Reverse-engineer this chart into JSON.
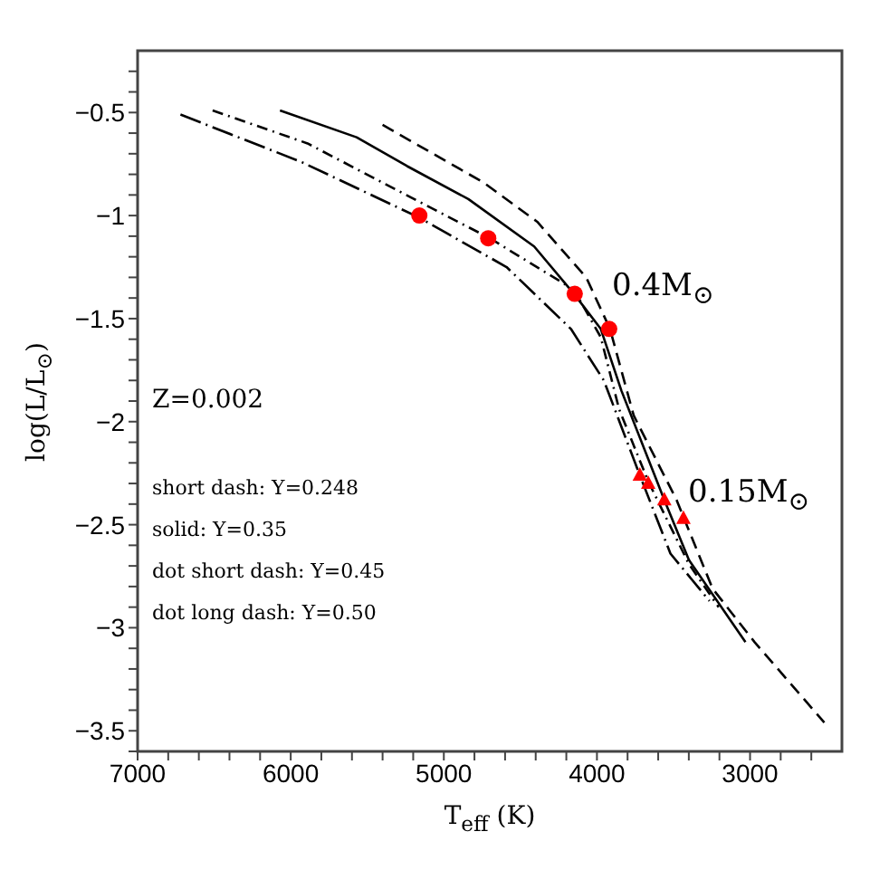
{
  "chart_data": {
    "type": "line",
    "xlabel": "T$_{eff}$ (K)",
    "ylabel": "log(L/L$_{⊙}$)",
    "xlim": [
      7000,
      2400
    ],
    "ylim": [
      -3.6,
      -0.2
    ],
    "xticks": [
      7000,
      {
        "value": 6800,
        "label": null
      },
      {
        "value": 6600,
        "label": null
      },
      {
        "value": 6400,
        "label": null
      },
      {
        "value": 6200,
        "label": null
      },
      6000,
      {
        "value": 5800,
        "label": null
      },
      {
        "value": 5600,
        "label": null
      },
      {
        "value": 5400,
        "label": null
      },
      {
        "value": 5200,
        "label": null
      },
      5000,
      {
        "value": 4800,
        "label": null
      },
      {
        "value": 4600,
        "label": null
      },
      {
        "value": 4400,
        "label": null
      },
      {
        "value": 4200,
        "label": null
      },
      4000,
      {
        "value": 3800,
        "label": null
      },
      {
        "value": 3600,
        "label": null
      },
      {
        "value": 3400,
        "label": null
      },
      {
        "value": 3200,
        "label": null
      },
      3000,
      {
        "value": 2800,
        "label": null
      },
      {
        "value": 2600,
        "label": null
      }
    ],
    "yticks": [
      {
        "value": -3.6,
        "label": null
      },
      -3.5,
      {
        "value": -3.4,
        "label": null
      },
      {
        "value": -3.3,
        "label": null
      },
      {
        "value": -3.2,
        "label": null
      },
      {
        "value": -3.1,
        "label": null
      },
      -3,
      {
        "value": -2.9,
        "label": null
      },
      {
        "value": -2.8,
        "label": null
      },
      {
        "value": -2.7,
        "label": null
      },
      {
        "value": -2.6,
        "label": null
      },
      -2.5,
      {
        "value": -2.4,
        "label": null
      },
      {
        "value": -2.3,
        "label": null
      },
      {
        "value": -2.2,
        "label": null
      },
      {
        "value": -2.1,
        "label": null
      },
      -2,
      {
        "value": -1.9,
        "label": null
      },
      {
        "value": -1.8,
        "label": null
      },
      {
        "value": -1.7,
        "label": null
      },
      {
        "value": -1.6,
        "label": null
      },
      -1.5,
      {
        "value": -1.4,
        "label": null
      },
      {
        "value": -1.3,
        "label": null
      },
      {
        "value": -1.2,
        "label": null
      },
      {
        "value": -1.1,
        "label": null
      },
      -1,
      {
        "value": -0.9,
        "label": null
      },
      {
        "value": -0.8,
        "label": null
      },
      {
        "value": -0.7,
        "label": null
      },
      {
        "value": -0.6,
        "label": null
      },
      -0.5,
      {
        "value": -0.4,
        "label": null
      },
      {
        "value": -0.3,
        "label": null
      }
    ],
    "grid": false,
    "series": [
      {
        "color": "#000000",
        "line_style": "dashed",
        "marker": "none",
        "x": [
          5400,
          4740,
          4390,
          4070,
          3915,
          3760,
          3480,
          3245,
          2970,
          2515
        ],
        "values": [
          -0.56,
          -0.84,
          -1.03,
          -1.3,
          -1.55,
          -1.97,
          -2.38,
          -2.81,
          -3.07,
          -3.46
        ]
      },
      {
        "color": "#000000",
        "line_style": "solid",
        "marker": "none",
        "x": [
          6070,
          5570,
          5240,
          4840,
          4410,
          4150,
          3975,
          3840,
          3560,
          3400,
          3030
        ],
        "values": [
          -0.49,
          -0.62,
          -0.76,
          -0.92,
          -1.15,
          -1.38,
          -1.55,
          -1.85,
          -2.38,
          -2.67,
          -3.07
        ]
      },
      {
        "color": "#000000",
        "line_style": "dashdot",
        "marker": "none",
        "x": [
          6510,
          5890,
          5220,
          4700,
          4150,
          3975,
          3855,
          3665,
          3400,
          3205
        ],
        "values": [
          -0.49,
          -0.65,
          -0.91,
          -1.11,
          -1.36,
          -1.59,
          -1.94,
          -2.29,
          -2.69,
          -2.9
        ]
      },
      {
        "color": "#000000",
        "line_style": "longdashdot",
        "marker": "none",
        "x": [
          6720,
          5930,
          5160,
          4590,
          4170,
          3955,
          3720,
          3520,
          3265
        ],
        "values": [
          -0.51,
          -0.74,
          -1.01,
          -1.25,
          -1.55,
          -1.8,
          -2.26,
          -2.64,
          -2.87
        ]
      },
      {
        "type": "scatter",
        "color": "#ff0000",
        "marker": "circle",
        "x": [
          5160,
          4710,
          4145,
          3920
        ],
        "values": [
          -1.0,
          -1.11,
          -1.38,
          -1.55
        ]
      },
      {
        "type": "scatter",
        "color": "#ff0000",
        "marker": "triangle",
        "x": [
          3720,
          3665,
          3560,
          3435
        ],
        "values": [
          -2.26,
          -2.3,
          -2.38,
          -2.47
        ]
      }
    ],
    "annotations": [
      "0.4M$_{⊙}$",
      "0.15M$_{⊙}$",
      "Z=0.002",
      "short dash: Y=0.248",
      "solid: Y=0.35",
      "dot short dash: Y=0.45",
      "dot long dash: Y=0.50"
    ]
  }
}
